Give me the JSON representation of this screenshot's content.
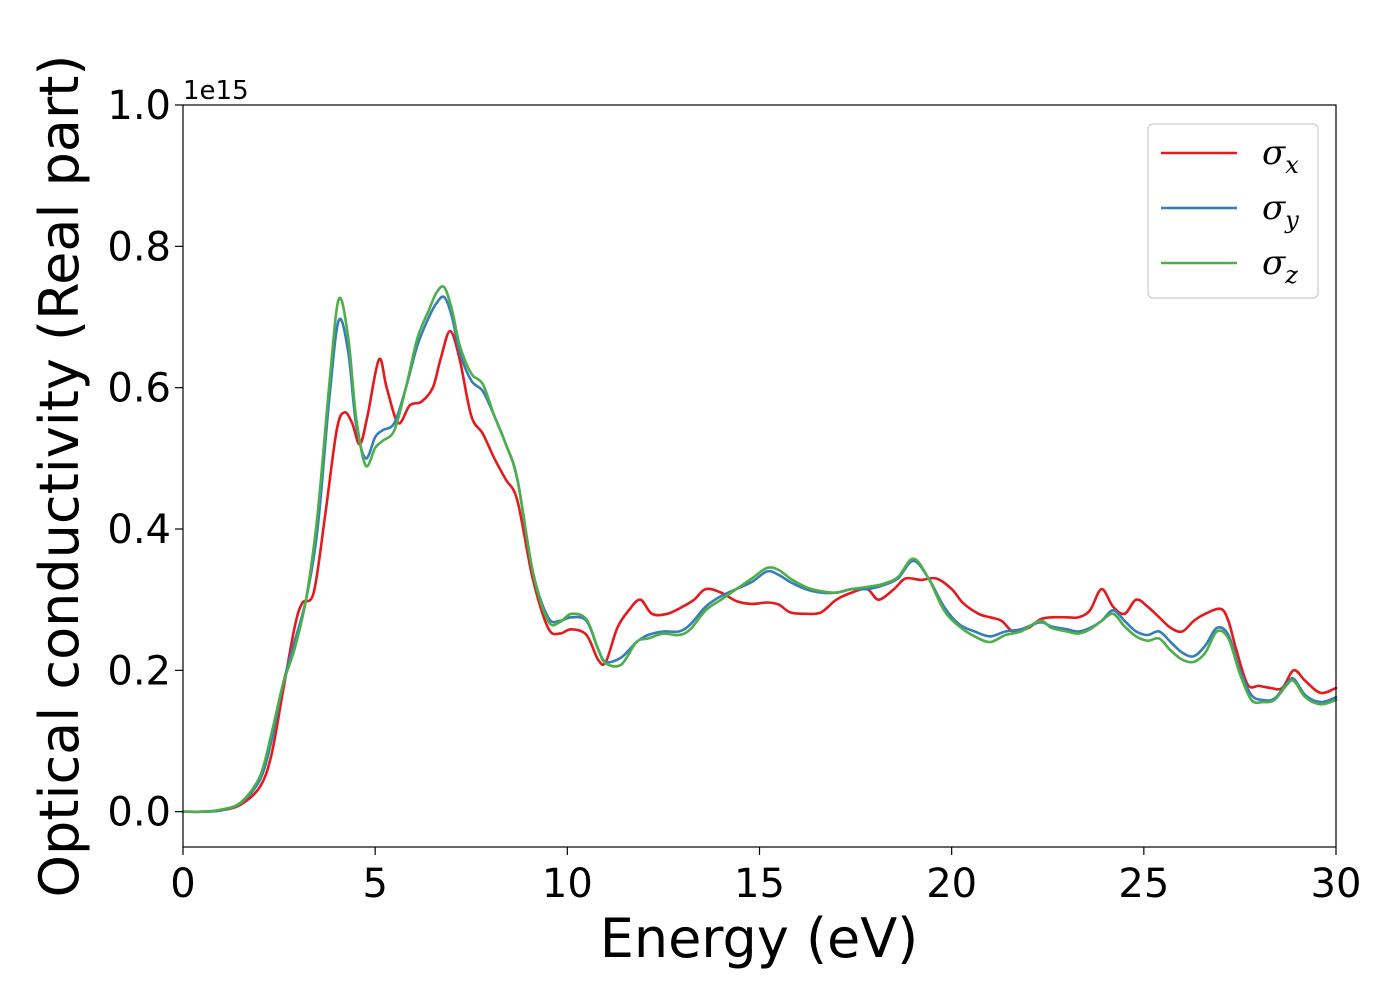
{
  "chart_data": {
    "type": "line",
    "title": "",
    "xlabel": "Energy (eV)",
    "ylabel": "Optical conductivity (Real part)",
    "y_offset_text": "1e15",
    "xlim": [
      0,
      30
    ],
    "ylim": [
      -0.05,
      1.0
    ],
    "xticks": [
      0,
      5,
      10,
      15,
      20,
      25,
      30
    ],
    "xtick_labels": [
      "0",
      "5",
      "10",
      "15",
      "20",
      "25",
      "30"
    ],
    "yticks": [
      0.0,
      0.2,
      0.4,
      0.6,
      0.8,
      1.0
    ],
    "ytick_labels": [
      "0.0",
      "0.2",
      "0.4",
      "0.6",
      "0.8",
      "1.0"
    ],
    "grid": false,
    "legend_position": "top-right",
    "series": [
      {
        "name": "σx",
        "symbol": "σ",
        "subscript": "x",
        "color": "#e41a1c",
        "x": [
          0,
          0.5,
          1,
          1.5,
          2,
          2.3,
          2.6,
          2.9,
          3.1,
          3.4,
          3.7,
          4,
          4.2,
          4.4,
          4.6,
          4.8,
          5.1,
          5.3,
          5.6,
          5.9,
          6.2,
          6.5,
          6.7,
          6.95,
          7.2,
          7.5,
          7.8,
          8.1,
          8.4,
          8.7,
          9.1,
          9.5,
          9.8,
          10.1,
          10.5,
          10.8,
          11,
          11.3,
          11.6,
          11.9,
          12.2,
          12.6,
          13,
          13.3,
          13.6,
          14,
          14.4,
          14.8,
          15.2,
          15.5,
          15.8,
          16.2,
          16.6,
          17,
          17.4,
          17.8,
          18.1,
          18.5,
          18.8,
          19.2,
          19.6,
          20,
          20.3,
          20.7,
          21,
          21.3,
          21.6,
          22,
          22.3,
          22.6,
          23,
          23.3,
          23.6,
          23.9,
          24.2,
          24.5,
          24.8,
          25.1,
          25.4,
          25.7,
          26,
          26.3,
          26.6,
          27,
          27.2,
          27.4,
          27.7,
          28,
          28.3,
          28.6,
          28.9,
          29.2,
          29.6,
          30
        ],
        "y": [
          0,
          0,
          0.002,
          0.01,
          0.035,
          0.08,
          0.17,
          0.26,
          0.295,
          0.31,
          0.42,
          0.54,
          0.565,
          0.55,
          0.52,
          0.56,
          0.64,
          0.6,
          0.55,
          0.575,
          0.58,
          0.6,
          0.64,
          0.68,
          0.64,
          0.56,
          0.535,
          0.5,
          0.47,
          0.44,
          0.33,
          0.26,
          0.252,
          0.258,
          0.25,
          0.215,
          0.212,
          0.26,
          0.285,
          0.3,
          0.28,
          0.28,
          0.29,
          0.3,
          0.315,
          0.31,
          0.298,
          0.294,
          0.296,
          0.293,
          0.282,
          0.28,
          0.282,
          0.3,
          0.31,
          0.315,
          0.3,
          0.315,
          0.33,
          0.328,
          0.33,
          0.315,
          0.295,
          0.28,
          0.275,
          0.27,
          0.255,
          0.26,
          0.272,
          0.275,
          0.275,
          0.275,
          0.285,
          0.315,
          0.29,
          0.28,
          0.3,
          0.29,
          0.275,
          0.26,
          0.255,
          0.27,
          0.28,
          0.287,
          0.27,
          0.23,
          0.18,
          0.178,
          0.175,
          0.175,
          0.2,
          0.185,
          0.168,
          0.175
        ]
      },
      {
        "name": "σy",
        "symbol": "σ",
        "subscript": "y",
        "color": "#377eb8",
        "x": [
          0,
          0.5,
          1,
          1.5,
          2,
          2.3,
          2.6,
          2.9,
          3.2,
          3.5,
          3.8,
          4.05,
          4.3,
          4.5,
          4.75,
          5,
          5.2,
          5.5,
          5.8,
          6.1,
          6.4,
          6.6,
          6.8,
          7,
          7.2,
          7.5,
          7.8,
          8.1,
          8.4,
          8.7,
          9.1,
          9.5,
          9.8,
          10.1,
          10.5,
          10.8,
          11,
          11.4,
          11.8,
          12.1,
          12.5,
          12.9,
          13.2,
          13.6,
          14,
          14.4,
          14.8,
          15.2,
          15.5,
          15.8,
          16.2,
          16.6,
          17,
          17.4,
          17.8,
          18.2,
          18.6,
          19,
          19.4,
          19.8,
          20.2,
          20.6,
          21,
          21.4,
          21.8,
          22.3,
          22.6,
          23,
          23.3,
          23.6,
          23.9,
          24.2,
          24.5,
          24.8,
          25.1,
          25.4,
          25.7,
          26,
          26.3,
          26.6,
          26.9,
          27.2,
          27.5,
          27.8,
          28.1,
          28.4,
          28.7,
          28.9,
          29.2,
          29.6,
          30
        ],
        "y": [
          0,
          0,
          0.002,
          0.012,
          0.045,
          0.1,
          0.18,
          0.24,
          0.3,
          0.4,
          0.58,
          0.695,
          0.65,
          0.55,
          0.5,
          0.53,
          0.54,
          0.55,
          0.6,
          0.66,
          0.7,
          0.72,
          0.728,
          0.7,
          0.65,
          0.61,
          0.595,
          0.56,
          0.52,
          0.47,
          0.34,
          0.275,
          0.27,
          0.275,
          0.27,
          0.23,
          0.212,
          0.218,
          0.24,
          0.25,
          0.255,
          0.255,
          0.265,
          0.29,
          0.305,
          0.315,
          0.325,
          0.34,
          0.335,
          0.325,
          0.315,
          0.31,
          0.31,
          0.315,
          0.315,
          0.32,
          0.33,
          0.355,
          0.33,
          0.29,
          0.265,
          0.255,
          0.248,
          0.255,
          0.258,
          0.268,
          0.262,
          0.258,
          0.255,
          0.26,
          0.27,
          0.285,
          0.27,
          0.255,
          0.25,
          0.255,
          0.24,
          0.225,
          0.22,
          0.235,
          0.26,
          0.25,
          0.2,
          0.165,
          0.158,
          0.16,
          0.18,
          0.188,
          0.165,
          0.155,
          0.162
        ]
      },
      {
        "name": "σz",
        "symbol": "σ",
        "subscript": "z",
        "color": "#4daf4a",
        "x": [
          0,
          0.5,
          1,
          1.5,
          2,
          2.3,
          2.6,
          2.9,
          3.2,
          3.5,
          3.8,
          4.05,
          4.3,
          4.5,
          4.75,
          5,
          5.2,
          5.5,
          5.8,
          6.1,
          6.4,
          6.6,
          6.8,
          7,
          7.2,
          7.5,
          7.8,
          8.1,
          8.4,
          8.7,
          9.1,
          9.5,
          9.8,
          10.1,
          10.5,
          10.8,
          11,
          11.4,
          11.8,
          12.1,
          12.5,
          12.9,
          13.2,
          13.6,
          14,
          14.4,
          14.8,
          15.2,
          15.5,
          15.8,
          16.2,
          16.6,
          17,
          17.4,
          17.8,
          18.2,
          18.6,
          19,
          19.4,
          19.8,
          20.2,
          20.6,
          21,
          21.4,
          21.8,
          22.3,
          22.6,
          23,
          23.3,
          23.6,
          23.9,
          24.2,
          24.5,
          24.8,
          25.1,
          25.4,
          25.7,
          26,
          26.3,
          26.6,
          26.9,
          27.2,
          27.5,
          27.8,
          28.1,
          28.4,
          28.7,
          28.9,
          29.2,
          29.6,
          30
        ],
        "y": [
          0,
          0,
          0.003,
          0.013,
          0.05,
          0.11,
          0.18,
          0.23,
          0.3,
          0.42,
          0.6,
          0.725,
          0.67,
          0.56,
          0.49,
          0.515,
          0.525,
          0.54,
          0.6,
          0.67,
          0.71,
          0.735,
          0.742,
          0.71,
          0.66,
          0.62,
          0.605,
          0.56,
          0.52,
          0.47,
          0.34,
          0.27,
          0.268,
          0.28,
          0.272,
          0.23,
          0.21,
          0.208,
          0.24,
          0.245,
          0.252,
          0.25,
          0.258,
          0.285,
          0.3,
          0.315,
          0.33,
          0.345,
          0.342,
          0.33,
          0.318,
          0.312,
          0.31,
          0.315,
          0.318,
          0.322,
          0.332,
          0.358,
          0.33,
          0.285,
          0.262,
          0.248,
          0.24,
          0.25,
          0.255,
          0.27,
          0.26,
          0.255,
          0.252,
          0.258,
          0.27,
          0.28,
          0.262,
          0.248,
          0.242,
          0.245,
          0.228,
          0.215,
          0.212,
          0.225,
          0.255,
          0.245,
          0.195,
          0.158,
          0.155,
          0.158,
          0.178,
          0.185,
          0.162,
          0.152,
          0.158
        ]
      }
    ]
  }
}
